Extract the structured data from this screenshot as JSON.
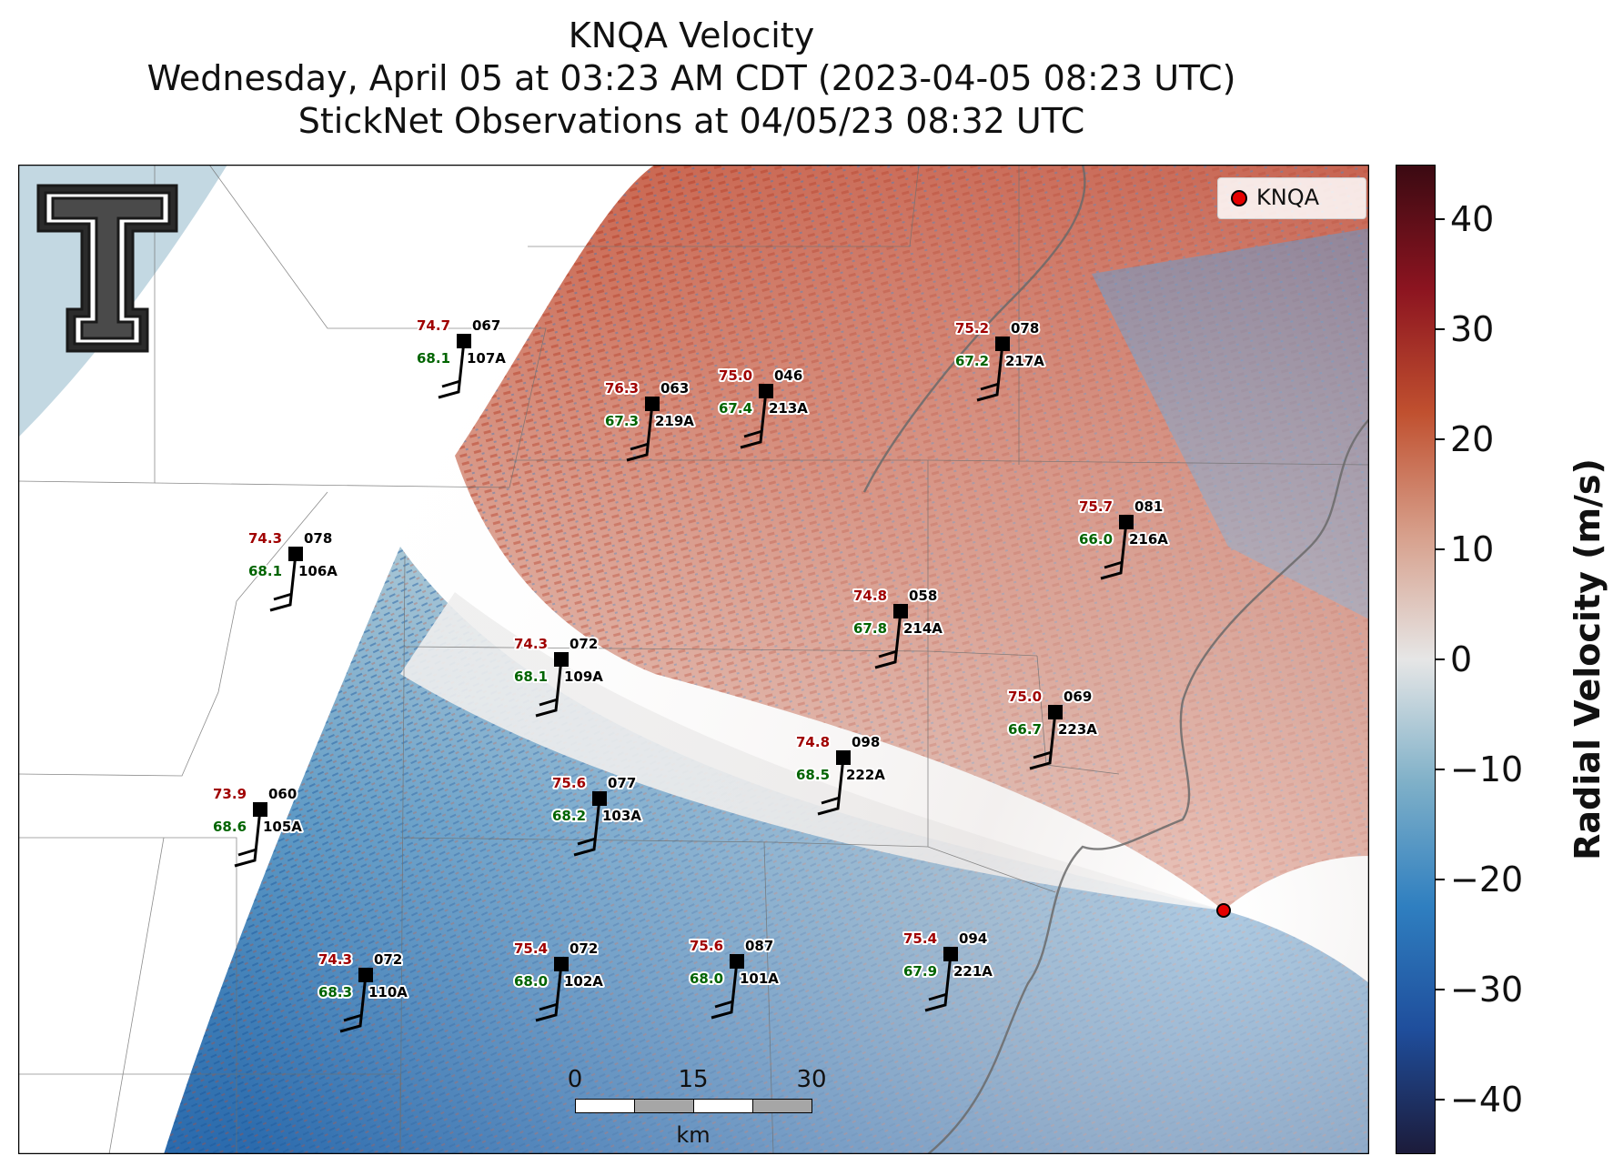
{
  "title": {
    "line1": "KNQA Velocity",
    "line2": "Wednesday, April 05 at 03:23 AM CDT (2023-04-05 08:23 UTC)",
    "line3": "StickNet Observations at 04/05/23 08:32 UTC"
  },
  "legend": {
    "radar_label": "KNQA",
    "marker_color": "#e60000"
  },
  "colorbar": {
    "title": "Radial Velocity (m/s)",
    "range": [
      -45,
      45
    ],
    "ticks": [
      "40",
      "30",
      "20",
      "10",
      "0",
      "−10",
      "−20",
      "−30",
      "−40"
    ],
    "tick_values": [
      40,
      30,
      20,
      10,
      0,
      -10,
      -20,
      -30,
      -40
    ],
    "colors": [
      "#1c1b3a",
      "#1f4e9c",
      "#2f7fc0",
      "#7fb0c8",
      "#e6e6e6",
      "#d7a08c",
      "#c0502f",
      "#8c1420",
      "#3b0a12"
    ]
  },
  "scalebar": {
    "labels": [
      "0",
      "15",
      "30"
    ],
    "unit": "km"
  },
  "stations": [
    {
      "id": "107A",
      "temp": "74.7",
      "dew": "68.1",
      "dir": "067"
    },
    {
      "id": "219A",
      "temp": "76.3",
      "dew": "67.3",
      "dir": "063"
    },
    {
      "id": "213A",
      "temp": "75.0",
      "dew": "67.4",
      "dir": "046"
    },
    {
      "id": "217A",
      "temp": "75.2",
      "dew": "67.2",
      "dir": "078"
    },
    {
      "id": "106A",
      "temp": "74.3",
      "dew": "68.1",
      "dir": "078"
    },
    {
      "id": "216A",
      "temp": "75.7",
      "dew": "66.0",
      "dir": "081"
    },
    {
      "id": "214A",
      "temp": "74.8",
      "dew": "67.8",
      "dir": "058"
    },
    {
      "id": "109A",
      "temp": "74.3",
      "dew": "68.1",
      "dir": "072"
    },
    {
      "id": "223A",
      "temp": "75.0",
      "dew": "66.7",
      "dir": "069"
    },
    {
      "id": "222A",
      "temp": "74.8",
      "dew": "68.5",
      "dir": "098"
    },
    {
      "id": "105A",
      "temp": "73.9",
      "dew": "68.6",
      "dir": "060"
    },
    {
      "id": "103A",
      "temp": "75.6",
      "dew": "68.2",
      "dir": "077"
    },
    {
      "id": "110A",
      "temp": "74.3",
      "dew": "68.3",
      "dir": "072"
    },
    {
      "id": "102A",
      "temp": "75.4",
      "dew": "68.0",
      "dir": "072"
    },
    {
      "id": "101A",
      "temp": "75.6",
      "dew": "68.0",
      "dir": "087"
    },
    {
      "id": "221A",
      "temp": "75.4",
      "dew": "67.9",
      "dir": "094"
    }
  ]
}
